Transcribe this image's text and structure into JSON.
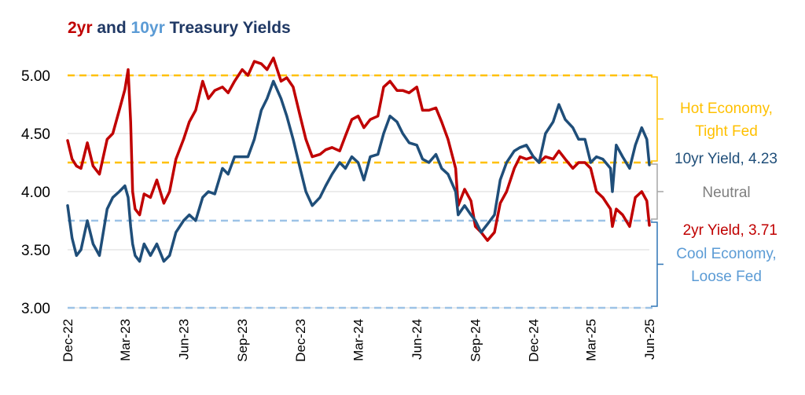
{
  "chart_data": {
    "type": "line",
    "title_parts": [
      {
        "text": "2yr",
        "color": "#c00000"
      },
      {
        "text": " and ",
        "color": "#1f3864"
      },
      {
        "text": "10yr",
        "color": "#5b9bd5"
      },
      {
        "text": " Treasury Yields",
        "color": "#1f3864"
      }
    ],
    "ylim": [
      3.0,
      5.0
    ],
    "yticks": [
      "3.00",
      "3.50",
      "4.00",
      "4.50",
      "5.00"
    ],
    "ytick_values": [
      3.0,
      3.5,
      4.0,
      4.5,
      5.0
    ],
    "xlim": [
      "2022-12-01",
      "2025-06-01"
    ],
    "xticks": [
      "Dec-22",
      "Mar-23",
      "Jun-23",
      "Sep-23",
      "Dec-23",
      "Mar-24",
      "Jun-24",
      "Sep-24",
      "Dec-24",
      "Mar-25",
      "Jun-25"
    ],
    "xtick_dates": [
      "2022-12-01",
      "2023-03-01",
      "2023-06-01",
      "2023-09-01",
      "2023-12-01",
      "2024-03-01",
      "2024-06-01",
      "2024-09-01",
      "2024-12-01",
      "2025-03-01",
      "2025-06-01"
    ],
    "grid": "horizontal",
    "reference_lines": [
      {
        "value": 5.0,
        "color": "#ffc000"
      },
      {
        "value": 4.25,
        "color": "#ffc000"
      },
      {
        "value": 3.75,
        "color": "#9dc3e6"
      },
      {
        "value": 3.0,
        "color": "#9dc3e6"
      }
    ],
    "zones": [
      {
        "lines": [
          "Hot Economy,",
          "Tight Fed"
        ],
        "from": 4.25,
        "to": 5.0,
        "color": "#ffc000",
        "text_color": "#ffc000"
      },
      {
        "lines": [
          "Neutral"
        ],
        "from": 3.75,
        "to": 4.25,
        "color": "#a6a6a6",
        "text_color": "#7f7f7f"
      },
      {
        "lines": [
          "Cool Economy,",
          "Loose Fed"
        ],
        "from": 3.0,
        "to": 3.75,
        "color": "#2e75b6",
        "text_color": "#5b9bd5"
      }
    ],
    "series": [
      {
        "name": "2yr",
        "color": "#c00000",
        "end_label": "2yr Yield, 3.71",
        "x": [
          "2022-12-01",
          "2022-12-08",
          "2022-12-15",
          "2022-12-22",
          "2023-01-01",
          "2023-01-10",
          "2023-01-20",
          "2023-02-01",
          "2023-02-10",
          "2023-02-20",
          "2023-03-01",
          "2023-03-06",
          "2023-03-10",
          "2023-03-13",
          "2023-03-17",
          "2023-03-24",
          "2023-03-31",
          "2023-04-10",
          "2023-04-20",
          "2023-05-01",
          "2023-05-10",
          "2023-05-20",
          "2023-06-01",
          "2023-06-10",
          "2023-06-20",
          "2023-07-01",
          "2023-07-10",
          "2023-07-20",
          "2023-08-01",
          "2023-08-10",
          "2023-08-20",
          "2023-09-01",
          "2023-09-10",
          "2023-09-20",
          "2023-10-01",
          "2023-10-10",
          "2023-10-20",
          "2023-11-01",
          "2023-11-10",
          "2023-11-20",
          "2023-12-01",
          "2023-12-10",
          "2023-12-20",
          "2024-01-01",
          "2024-01-10",
          "2024-01-20",
          "2024-02-01",
          "2024-02-10",
          "2024-02-20",
          "2024-03-01",
          "2024-03-10",
          "2024-03-20",
          "2024-04-01",
          "2024-04-10",
          "2024-04-20",
          "2024-05-01",
          "2024-05-10",
          "2024-05-20",
          "2024-06-01",
          "2024-06-10",
          "2024-06-20",
          "2024-07-01",
          "2024-07-10",
          "2024-07-20",
          "2024-08-01",
          "2024-08-05",
          "2024-08-15",
          "2024-08-25",
          "2024-09-01",
          "2024-09-10",
          "2024-09-20",
          "2024-10-01",
          "2024-10-10",
          "2024-10-20",
          "2024-11-01",
          "2024-11-10",
          "2024-11-20",
          "2024-12-01",
          "2024-12-10",
          "2024-12-20",
          "2025-01-01",
          "2025-01-10",
          "2025-01-20",
          "2025-02-01",
          "2025-02-10",
          "2025-02-20",
          "2025-03-01",
          "2025-03-10",
          "2025-03-20",
          "2025-04-01",
          "2025-04-04",
          "2025-04-10",
          "2025-04-20",
          "2025-05-01",
          "2025-05-10",
          "2025-05-20",
          "2025-05-28",
          "2025-06-01"
        ],
        "values": [
          4.44,
          4.28,
          4.22,
          4.2,
          4.42,
          4.22,
          4.15,
          4.45,
          4.5,
          4.7,
          4.88,
          5.05,
          4.6,
          4.0,
          3.85,
          3.8,
          3.98,
          3.95,
          4.1,
          3.9,
          4.0,
          4.28,
          4.45,
          4.6,
          4.7,
          4.95,
          4.8,
          4.87,
          4.9,
          4.85,
          4.95,
          5.05,
          5.0,
          5.12,
          5.1,
          5.05,
          5.15,
          4.95,
          4.98,
          4.9,
          4.65,
          4.45,
          4.3,
          4.32,
          4.36,
          4.38,
          4.35,
          4.48,
          4.62,
          4.65,
          4.55,
          4.62,
          4.65,
          4.9,
          4.95,
          4.87,
          4.87,
          4.85,
          4.9,
          4.7,
          4.7,
          4.72,
          4.6,
          4.45,
          4.2,
          3.88,
          4.02,
          3.92,
          3.7,
          3.65,
          3.58,
          3.65,
          3.9,
          4.0,
          4.2,
          4.3,
          4.28,
          4.3,
          4.25,
          4.3,
          4.28,
          4.35,
          4.28,
          4.2,
          4.25,
          4.25,
          4.2,
          4.0,
          3.95,
          3.85,
          3.7,
          3.85,
          3.8,
          3.7,
          3.95,
          4.0,
          3.92,
          3.71
        ]
      },
      {
        "name": "10yr",
        "color": "#1f4e79",
        "end_label": "10yr Yield, 4.23",
        "x": [
          "2022-12-01",
          "2022-12-08",
          "2022-12-15",
          "2022-12-22",
          "2023-01-01",
          "2023-01-10",
          "2023-01-20",
          "2023-02-01",
          "2023-02-10",
          "2023-02-20",
          "2023-03-01",
          "2023-03-06",
          "2023-03-10",
          "2023-03-13",
          "2023-03-17",
          "2023-03-24",
          "2023-03-31",
          "2023-04-10",
          "2023-04-20",
          "2023-05-01",
          "2023-05-10",
          "2023-05-20",
          "2023-06-01",
          "2023-06-10",
          "2023-06-20",
          "2023-07-01",
          "2023-07-10",
          "2023-07-20",
          "2023-08-01",
          "2023-08-10",
          "2023-08-20",
          "2023-09-01",
          "2023-09-10",
          "2023-09-20",
          "2023-10-01",
          "2023-10-10",
          "2023-10-20",
          "2023-11-01",
          "2023-11-10",
          "2023-11-20",
          "2023-12-01",
          "2023-12-10",
          "2023-12-20",
          "2024-01-01",
          "2024-01-10",
          "2024-01-20",
          "2024-02-01",
          "2024-02-10",
          "2024-02-20",
          "2024-03-01",
          "2024-03-10",
          "2024-03-20",
          "2024-04-01",
          "2024-04-10",
          "2024-04-20",
          "2024-05-01",
          "2024-05-10",
          "2024-05-20",
          "2024-06-01",
          "2024-06-10",
          "2024-06-20",
          "2024-07-01",
          "2024-07-10",
          "2024-07-20",
          "2024-08-01",
          "2024-08-05",
          "2024-08-15",
          "2024-08-25",
          "2024-09-01",
          "2024-09-10",
          "2024-09-20",
          "2024-10-01",
          "2024-10-10",
          "2024-10-20",
          "2024-11-01",
          "2024-11-10",
          "2024-11-20",
          "2024-12-01",
          "2024-12-10",
          "2024-12-20",
          "2025-01-01",
          "2025-01-10",
          "2025-01-20",
          "2025-02-01",
          "2025-02-10",
          "2025-02-20",
          "2025-03-01",
          "2025-03-10",
          "2025-03-20",
          "2025-04-01",
          "2025-04-04",
          "2025-04-10",
          "2025-04-20",
          "2025-05-01",
          "2025-05-10",
          "2025-05-20",
          "2025-05-28",
          "2025-06-01"
        ],
        "values": [
          3.88,
          3.6,
          3.45,
          3.5,
          3.75,
          3.55,
          3.45,
          3.85,
          3.95,
          4.0,
          4.05,
          3.95,
          3.7,
          3.55,
          3.45,
          3.4,
          3.55,
          3.45,
          3.55,
          3.4,
          3.45,
          3.65,
          3.75,
          3.8,
          3.75,
          3.95,
          4.0,
          3.98,
          4.2,
          4.15,
          4.3,
          4.3,
          4.3,
          4.45,
          4.7,
          4.8,
          4.95,
          4.8,
          4.65,
          4.45,
          4.2,
          4.0,
          3.88,
          3.95,
          4.05,
          4.15,
          4.25,
          4.2,
          4.3,
          4.25,
          4.1,
          4.3,
          4.32,
          4.5,
          4.65,
          4.6,
          4.5,
          4.42,
          4.4,
          4.28,
          4.25,
          4.32,
          4.2,
          4.15,
          4.0,
          3.8,
          3.88,
          3.8,
          3.75,
          3.65,
          3.72,
          3.8,
          4.1,
          4.25,
          4.35,
          4.38,
          4.4,
          4.3,
          4.25,
          4.5,
          4.6,
          4.75,
          4.62,
          4.55,
          4.45,
          4.45,
          4.25,
          4.3,
          4.28,
          4.2,
          4.0,
          4.4,
          4.3,
          4.2,
          4.4,
          4.55,
          4.45,
          4.23
        ]
      }
    ]
  }
}
